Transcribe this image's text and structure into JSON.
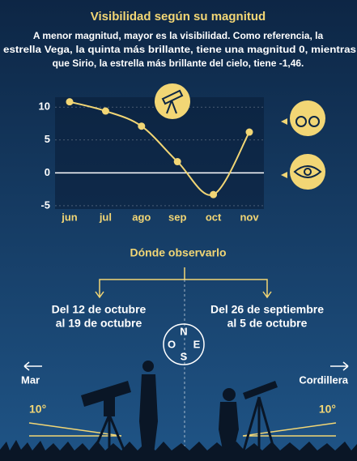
{
  "title": "Visibilidad según su magnitud",
  "subtitle": [
    "A menor magnitud, mayor es la visibilidad. Como referencia, la",
    "estrella Vega, la quinta más brillante, tiene una magnitud 0, mientras",
    "que Sirio, la estrella más brillante del cielo, tiene -1,46."
  ],
  "chart_data": {
    "type": "line",
    "categories": [
      "jun",
      "jul",
      "ago",
      "sep",
      "oct",
      "nov"
    ],
    "values": [
      10.8,
      9.4,
      7.1,
      1.7,
      -3.3,
      6.2
    ],
    "color": "#f2d675",
    "ylim": [
      -5.5,
      11.5
    ],
    "yticks": [
      -5,
      0,
      5,
      10
    ],
    "grid": true
  },
  "where": {
    "title": "Dónde observarlo",
    "left": [
      "Del 12 de octubre",
      "al 19 de octubre"
    ],
    "right": [
      "Del 26 de septiembre",
      "al 5 de octubre"
    ],
    "compass": [
      "N",
      "O",
      "E",
      "S"
    ],
    "left_direction": "Mar",
    "right_direction": "Cordillera",
    "left_angle": "10°",
    "right_angle": "10°"
  }
}
